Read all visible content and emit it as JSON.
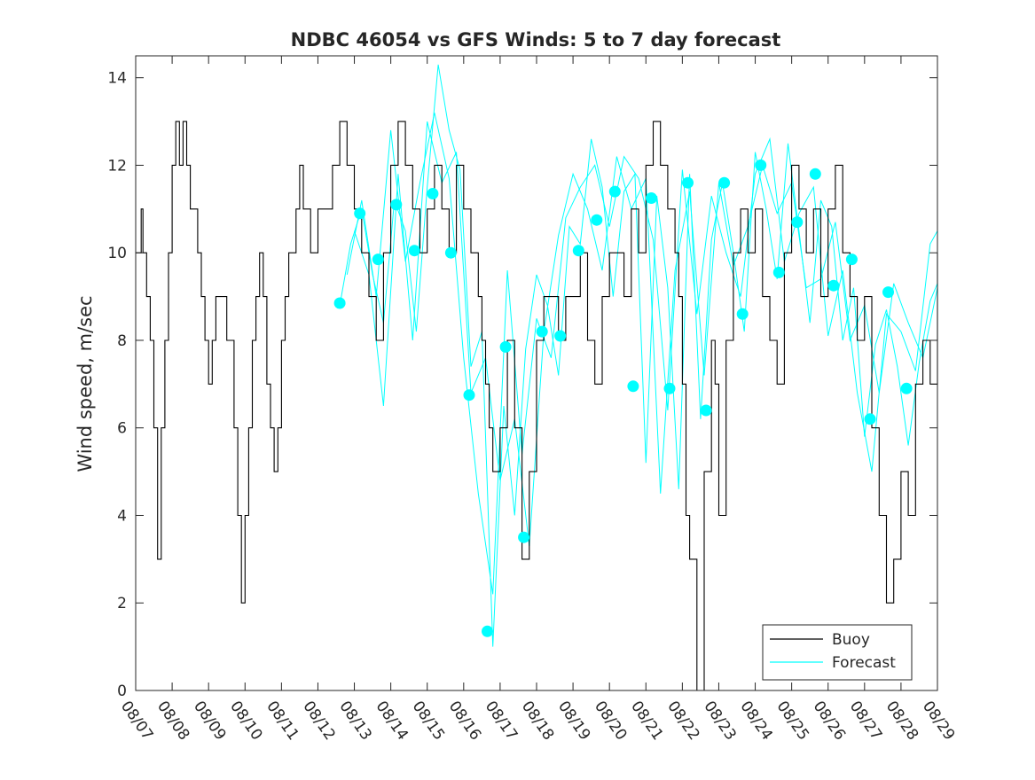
{
  "chart_data": {
    "type": "line",
    "title": "NDBC 46054 vs GFS Winds: 5 to 7 day forecast",
    "xlabel": "",
    "ylabel": "Wind speed, m/sec",
    "xlim": [
      0,
      22
    ],
    "ylim": [
      0,
      14.5
    ],
    "x_ticks": [
      "08/07",
      "08/08",
      "08/09",
      "08/10",
      "08/11",
      "08/12",
      "08/13",
      "08/14",
      "08/15",
      "08/16",
      "08/17",
      "08/18",
      "08/19",
      "08/20",
      "08/21",
      "08/22",
      "08/23",
      "08/24",
      "08/25",
      "08/26",
      "08/27",
      "08/28",
      "08/29"
    ],
    "y_ticks": [
      0,
      2,
      4,
      6,
      8,
      10,
      12,
      14
    ],
    "legend": {
      "placement": "bottom-right",
      "entries": [
        "Buoy",
        "Forecast"
      ]
    },
    "colors": {
      "buoy": "#000000",
      "forecast": "#00ffff",
      "axis": "#262626"
    },
    "series": [
      {
        "name": "Buoy",
        "x": [
          0,
          0.1,
          0.15,
          0.2,
          0.3,
          0.4,
          0.5,
          0.6,
          0.7,
          0.8,
          0.9,
          1.0,
          1.1,
          1.2,
          1.3,
          1.4,
          1.5,
          1.6,
          1.7,
          1.8,
          1.9,
          2.0,
          2.1,
          2.2,
          2.3,
          2.5,
          2.7,
          2.8,
          2.9,
          3.0,
          3.1,
          3.2,
          3.3,
          3.4,
          3.5,
          3.6,
          3.7,
          3.8,
          3.9,
          4.0,
          4.1,
          4.2,
          4.3,
          4.4,
          4.5,
          4.6,
          4.7,
          4.8,
          4.9,
          5.0,
          5.2,
          5.4,
          5.6,
          5.8,
          6.0,
          6.2,
          6.4,
          6.6,
          6.8,
          7.0,
          7.2,
          7.4,
          7.6,
          7.8,
          8.0,
          8.2,
          8.4,
          8.6,
          8.8,
          9.0,
          9.2,
          9.4,
          9.5,
          9.6,
          9.7,
          9.8,
          10.0,
          10.2,
          10.4,
          10.6,
          10.8,
          11.0,
          11.2,
          11.4,
          11.6,
          11.8,
          12.0,
          12.2,
          12.4,
          12.6,
          12.8,
          13.0,
          13.2,
          13.4,
          13.6,
          13.8,
          14.0,
          14.2,
          14.4,
          14.6,
          14.8,
          14.9,
          15.0,
          15.1,
          15.2,
          15.4,
          15.6,
          15.8,
          15.9,
          16.0,
          16.2,
          16.4,
          16.6,
          16.8,
          17.0,
          17.2,
          17.4,
          17.6,
          17.8,
          18.0,
          18.2,
          18.4,
          18.6,
          18.8,
          19.0,
          19.2,
          19.4,
          19.6,
          19.8,
          20.0,
          20.2,
          20.4,
          20.6,
          20.8,
          21.0,
          21.2,
          21.4,
          21.6,
          21.8,
          22.0
        ],
        "y": [
          10,
          10,
          11,
          10,
          9,
          8,
          6,
          3,
          6,
          8,
          10,
          12,
          13,
          12,
          13,
          12,
          11,
          11,
          10,
          9,
          8,
          7,
          8,
          9,
          9,
          8,
          6,
          4,
          2,
          4,
          6,
          8,
          9,
          10,
          9,
          7,
          6,
          5,
          6,
          8,
          9,
          10,
          10,
          11,
          12,
          11,
          11,
          10,
          10,
          11,
          11,
          12,
          13,
          12,
          11,
          10,
          9,
          8,
          10,
          12,
          13,
          12,
          11,
          10,
          11,
          12,
          11,
          10,
          12,
          11,
          10,
          9,
          8,
          7,
          6,
          5,
          6,
          8,
          6,
          3,
          5,
          8,
          9,
          9,
          8,
          9,
          9,
          10,
          8,
          7,
          9,
          10,
          10,
          9,
          11,
          10,
          12,
          13,
          12,
          11,
          10,
          9,
          7,
          4,
          3,
          0,
          5,
          8,
          7,
          4,
          8,
          10,
          11,
          10,
          11,
          9,
          8,
          7,
          10,
          12,
          11,
          10,
          11,
          9,
          11,
          12,
          10,
          9,
          8,
          9,
          6,
          4,
          2,
          3,
          5,
          4,
          7,
          8,
          7,
          10
        ]
      },
      {
        "name": "Forecast",
        "points_x": [
          5.6,
          6.15,
          6.65,
          7.15,
          7.65,
          8.15,
          8.65,
          9.15,
          9.65,
          10.15,
          10.65,
          11.15,
          11.65,
          12.15,
          12.65,
          13.15,
          13.65,
          14.15,
          14.65,
          15.15,
          15.65,
          16.15,
          16.65,
          17.15,
          17.65,
          18.15,
          18.65,
          19.15,
          19.65,
          20.15,
          20.65,
          21.15
        ],
        "points_y": [
          8.85,
          10.9,
          9.85,
          11.1,
          10.05,
          11.35,
          10.0,
          6.75,
          1.35,
          7.85,
          3.5,
          8.2,
          8.1,
          10.05,
          10.75,
          11.4,
          6.95,
          11.25,
          6.9,
          11.6,
          6.4,
          11.6,
          8.6,
          12.0,
          9.55,
          10.7,
          11.8,
          9.25,
          9.85,
          6.2,
          9.1,
          6.9
        ],
        "traces": [
          {
            "x": [
              5.6,
              5.9,
              6.2,
              6.5,
              6.8,
              7.1,
              7.4,
              7.7,
              8.0,
              8.3,
              8.6,
              8.9,
              9.2,
              9.5,
              9.8,
              10.1,
              10.4,
              10.7,
              11.0,
              11.3,
              11.6,
              11.9,
              12.2,
              12.5,
              12.8,
              13.1,
              13.4,
              13.7,
              14.0,
              14.3,
              14.6,
              14.9,
              15.2,
              15.5,
              15.8,
              16.1,
              16.4,
              16.7,
              17.0,
              17.3,
              17.6,
              17.9,
              18.2,
              18.5,
              18.8,
              19.1,
              19.4,
              19.7,
              20.0,
              20.3,
              20.6,
              20.9,
              21.2,
              21.5,
              21.8,
              22.0
            ],
            "y": [
              8.8,
              10.2,
              11.0,
              9.5,
              8.4,
              11.2,
              10.5,
              8.2,
              11.5,
              14.3,
              12.8,
              11.9,
              7.4,
              8.2,
              1.0,
              6.5,
              4.0,
              7.8,
              9.5,
              8.8,
              7.2,
              10.6,
              10.2,
              12.6,
              11.5,
              9.0,
              11.4,
              11.8,
              5.2,
              11.3,
              9.2,
              4.6,
              11.8,
              6.2,
              10.3,
              11.6,
              10.0,
              8.2,
              12.3,
              11.0,
              9.4,
              12.5,
              10.5,
              8.4,
              11.2,
              10.6,
              8.0,
              9.2,
              5.8,
              7.9,
              8.7,
              7.4,
              5.6,
              7.5,
              8.9,
              9.3
            ]
          },
          {
            "x": [
              5.8,
              6.2,
              6.6,
              7.0,
              7.4,
              7.8,
              8.2,
              8.6,
              9.0,
              9.4,
              9.8,
              10.2,
              10.6,
              11.0,
              11.4,
              11.8,
              12.2,
              12.6,
              13.0,
              13.4,
              13.8,
              14.2,
              14.6,
              15.0,
              15.4,
              15.8,
              16.2,
              16.6,
              17.0,
              17.4,
              17.8,
              18.2,
              18.6,
              19.0,
              19.4,
              19.8,
              20.2,
              20.6,
              21.0,
              21.4,
              21.8,
              22.0
            ],
            "y": [
              9.5,
              11.2,
              9.0,
              12.8,
              9.8,
              11.6,
              13.2,
              11.7,
              7.6,
              4.5,
              2.2,
              9.6,
              5.4,
              8.5,
              7.6,
              10.8,
              11.5,
              12.0,
              10.6,
              12.2,
              11.7,
              10.3,
              6.4,
              11.9,
              8.6,
              11.3,
              10.0,
              9.0,
              11.8,
              12.6,
              9.8,
              10.9,
              11.5,
              8.1,
              9.6,
              6.8,
              5.0,
              8.6,
              8.2,
              7.3,
              10.2,
              10.5
            ]
          },
          {
            "x": [
              6.0,
              6.4,
              6.8,
              7.2,
              7.6,
              8.0,
              8.4,
              8.8,
              9.2,
              9.6,
              10.0,
              10.4,
              10.8,
              11.2,
              11.6,
              12.0,
              12.4,
              12.8,
              13.2,
              13.6,
              14.0,
              14.4,
              14.8,
              15.2,
              15.6,
              16.0,
              16.4,
              16.8,
              17.2,
              17.6,
              18.0,
              18.4,
              18.8,
              19.2,
              19.6,
              20.0,
              20.4,
              20.8,
              21.2,
              21.6,
              22.0
            ],
            "y": [
              10.5,
              9.5,
              6.5,
              11.8,
              8.0,
              13.0,
              11.6,
              12.3,
              6.8,
              7.6,
              4.8,
              6.2,
              3.3,
              8.2,
              10.4,
              11.8,
              11.0,
              9.6,
              12.2,
              11.0,
              11.7,
              4.5,
              9.6,
              11.4,
              7.2,
              11.6,
              9.7,
              10.6,
              12.0,
              10.9,
              11.6,
              9.2,
              9.4,
              10.7,
              8.0,
              8.8,
              6.8,
              9.3,
              8.4,
              7.6,
              9.2
            ]
          }
        ]
      }
    ]
  }
}
